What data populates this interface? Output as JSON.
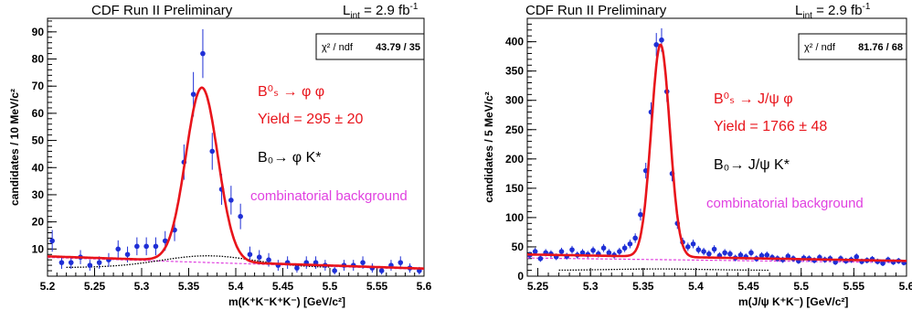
{
  "chart_data": [
    {
      "type": "scatter",
      "header": "CDF Run II Preliminary",
      "lumi": {
        "sym": "L",
        "sub": "int",
        "rest": " = 2.9 fb",
        "sup": "-1"
      },
      "chi2": {
        "label": "χ² / ndf",
        "value": "43.79 / 35"
      },
      "xlabel": {
        "main": "m(K⁺K⁻K⁺K⁻)",
        "unit": "[GeV/c²]"
      },
      "ylabel": "candidates / 10 MeV/c²",
      "xlim": [
        5.2,
        5.6
      ],
      "ylim": [
        0,
        95
      ],
      "xticks": [
        "5.2",
        "5.25",
        "5.3",
        "5.35",
        "5.4",
        "5.45",
        "5.5",
        "5.55",
        "5.6"
      ],
      "yticks": [
        "10",
        "20",
        "30",
        "40",
        "50",
        "60",
        "70",
        "80",
        "90"
      ],
      "ann": {
        "decay": "B⁰ₛ → φ φ",
        "yield": "Yield = 295 ± 20",
        "bg1": "B₀→ φ K*",
        "bg2": "combinatorial background"
      },
      "colors": {
        "fit": "#e8141b",
        "decay": "#e8141b",
        "bg1": "#000000",
        "comb": "#e040e0",
        "points": "#1f2fd6"
      },
      "series": [
        {
          "name": "data",
          "x": [
            5.205,
            5.215,
            5.225,
            5.235,
            5.245,
            5.255,
            5.265,
            5.275,
            5.285,
            5.295,
            5.305,
            5.315,
            5.325,
            5.335,
            5.345,
            5.355,
            5.365,
            5.375,
            5.385,
            5.395,
            5.405,
            5.415,
            5.425,
            5.435,
            5.445,
            5.455,
            5.465,
            5.475,
            5.485,
            5.495,
            5.505,
            5.515,
            5.525,
            5.535,
            5.545,
            5.555,
            5.565,
            5.575,
            5.585,
            5.595
          ],
          "y": [
            13,
            5,
            5,
            7,
            4,
            5,
            6,
            10,
            8,
            11,
            11,
            11,
            13,
            17,
            42,
            67,
            82,
            46,
            32,
            28,
            22,
            8,
            7,
            6,
            4,
            5,
            3,
            5,
            5,
            4,
            2,
            4,
            4,
            5,
            3,
            2,
            4,
            5,
            3,
            2
          ],
          "err": [
            4,
            2.3,
            2.3,
            2.6,
            2,
            2.3,
            2.5,
            3.2,
            2.9,
            3.3,
            3.3,
            3.3,
            3.6,
            4.1,
            6.5,
            8.2,
            9,
            6.8,
            5.7,
            5.3,
            4.7,
            2.9,
            2.6,
            2.5,
            2,
            2.3,
            1.7,
            2.3,
            2.3,
            2,
            1.4,
            2,
            2,
            2.3,
            1.7,
            1.4,
            2,
            2.3,
            1.7,
            1.4
          ]
        },
        {
          "name": "fit",
          "peak": 5.364,
          "sigma": 0.017,
          "amplitude": 64,
          "background": [
            7.3,
            2.8
          ]
        },
        {
          "name": "B0 reflection",
          "shape": [
            3.2,
            5.37,
            0.05,
            4.3
          ],
          "xrange": [
            5.22,
            5.5
          ]
        },
        {
          "name": "combinatorial",
          "background": [
            6.9,
            2.5
          ]
        }
      ]
    },
    {
      "type": "scatter",
      "header": "CDF Run II Preliminary",
      "lumi": {
        "sym": "L",
        "sub": "int",
        "rest": " = 2.9 fb",
        "sup": "-1"
      },
      "chi2": {
        "label": "χ² / ndf",
        "value": "81.76 / 68"
      },
      "xlabel": {
        "main": "m(J/ψ K⁺K⁻)",
        "unit": "[GeV/c²]"
      },
      "ylabel": "candidates / 5 MeV/c²",
      "xlim": [
        5.24,
        5.6
      ],
      "ylim": [
        0,
        440
      ],
      "xticks": [
        "5.25",
        "5.3",
        "5.35",
        "5.4",
        "5.45",
        "5.5",
        "5.55",
        "5.6"
      ],
      "yticks": [
        "0",
        "50",
        "100",
        "150",
        "200",
        "250",
        "300",
        "350",
        "400"
      ],
      "ann": {
        "decay": "B⁰ₛ → J/ψ φ",
        "yield": "Yield = 1766 ± 48",
        "bg1": "B₀→ J/ψ K*",
        "bg2": "combinatorial background"
      },
      "colors": {
        "fit": "#e8141b",
        "decay": "#e8141b",
        "bg1": "#000000",
        "comb": "#e040e0",
        "points": "#1f2fd6"
      },
      "series": [
        {
          "name": "data",
          "x": [
            5.2425,
            5.2475,
            5.2525,
            5.2575,
            5.2625,
            5.2675,
            5.2725,
            5.2775,
            5.2825,
            5.2875,
            5.2925,
            5.2975,
            5.3025,
            5.3075,
            5.3125,
            5.3175,
            5.3225,
            5.3275,
            5.3325,
            5.3375,
            5.3425,
            5.3475,
            5.3525,
            5.3575,
            5.3625,
            5.3675,
            5.3725,
            5.3775,
            5.3825,
            5.3875,
            5.3925,
            5.3975,
            5.4025,
            5.4075,
            5.4125,
            5.4175,
            5.4225,
            5.4275,
            5.4325,
            5.4375,
            5.4425,
            5.4475,
            5.4525,
            5.4575,
            5.4625,
            5.4675,
            5.4725,
            5.4775,
            5.4825,
            5.4875,
            5.4925,
            5.4975,
            5.5025,
            5.5075,
            5.5125,
            5.5175,
            5.5225,
            5.5275,
            5.5325,
            5.5375,
            5.5425,
            5.5475,
            5.5525,
            5.5575,
            5.5625,
            5.5675,
            5.5725,
            5.5775,
            5.5825,
            5.5875,
            5.5925,
            5.5975
          ],
          "y": [
            36,
            42,
            30,
            40,
            38,
            33,
            42,
            34,
            45,
            36,
            40,
            37,
            44,
            38,
            48,
            40,
            36,
            42,
            48,
            55,
            65,
            105,
            180,
            280,
            395,
            403,
            315,
            175,
            90,
            58,
            50,
            55,
            45,
            42,
            38,
            46,
            35,
            40,
            38,
            31,
            36,
            33,
            40,
            30,
            35,
            36,
            32,
            30,
            28,
            34,
            30,
            26,
            31,
            30,
            27,
            32,
            28,
            30,
            24,
            30,
            26,
            28,
            33,
            25,
            27,
            29,
            25,
            22,
            28,
            24,
            26,
            23
          ],
          "err": [
            6,
            6.5,
            5.5,
            6.3,
            6.2,
            5.7,
            6.5,
            5.8,
            6.7,
            6,
            6.3,
            6.1,
            6.6,
            6.2,
            6.9,
            6.3,
            6,
            6.5,
            6.9,
            7.4,
            8.1,
            10.2,
            13.4,
            16.7,
            19.9,
            20,
            17.7,
            13.2,
            9.5,
            7.6,
            7.1,
            7.4,
            6.7,
            6.5,
            6.2,
            6.8,
            5.9,
            6.3,
            6.2,
            5.6,
            6,
            5.7,
            6.3,
            5.5,
            5.9,
            6,
            5.7,
            5.5,
            5.3,
            5.8,
            5.5,
            5.1,
            5.6,
            5.5,
            5.2,
            5.7,
            5.3,
            5.5,
            4.9,
            5.5,
            5.1,
            5.3,
            5.7,
            5,
            5.2,
            5.4,
            5,
            4.7,
            5.3,
            4.9,
            5.1,
            4.8
          ]
        },
        {
          "name": "fit",
          "peak": 5.3665,
          "sigma": 0.0088,
          "amplitude": 362,
          "background": [
            37,
            26
          ]
        },
        {
          "name": "B0 reflection",
          "shape": [
            10,
            5.365,
            0.045,
            2.3
          ],
          "xrange": [
            5.27,
            5.47
          ]
        },
        {
          "name": "combinatorial",
          "background": [
            31,
            23
          ]
        }
      ]
    }
  ]
}
